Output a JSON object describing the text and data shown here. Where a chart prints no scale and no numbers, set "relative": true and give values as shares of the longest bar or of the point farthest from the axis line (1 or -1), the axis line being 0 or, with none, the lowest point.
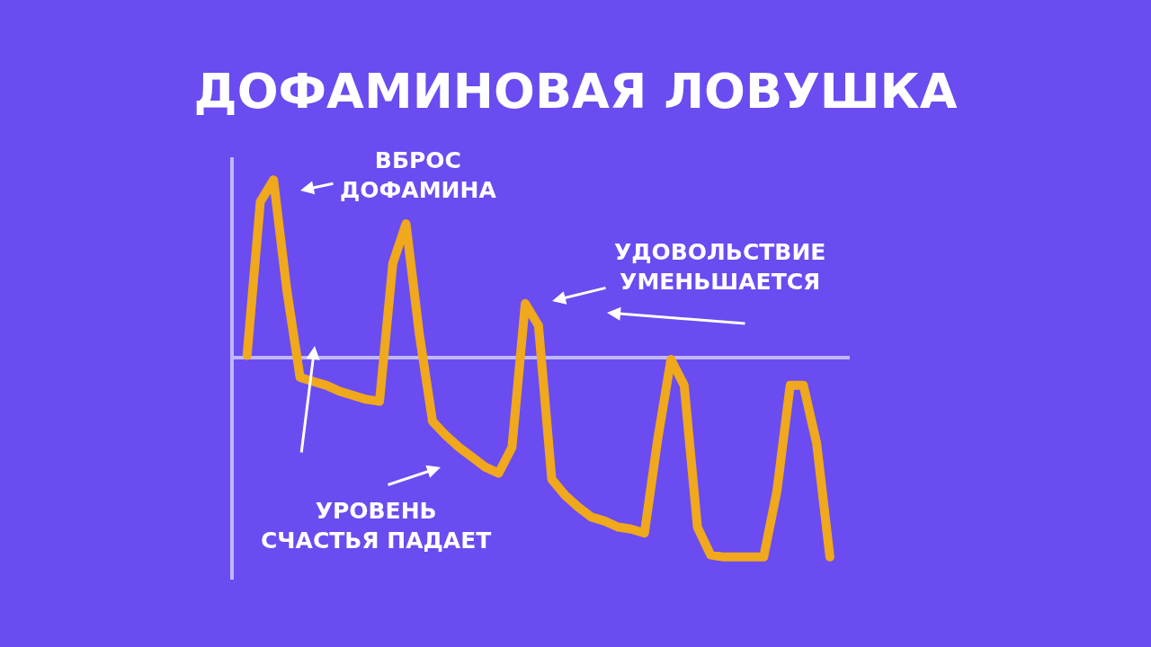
{
  "chart_data": {
    "type": "line",
    "title": "ДОФАМИНОВАЯ ЛОВУШКА",
    "relative": true,
    "color": "#f0a81c",
    "grid": false,
    "line_style": "solid",
    "categories": [
      null,
      null,
      null,
      null,
      null,
      null,
      null,
      null,
      null,
      null,
      null,
      null,
      null,
      null,
      null,
      null,
      null,
      null,
      null,
      null,
      null,
      null,
      null,
      null,
      null,
      null,
      null,
      null,
      null,
      null,
      null,
      null,
      null,
      null,
      null,
      null,
      null,
      null,
      null,
      null,
      null,
      null,
      null,
      null,
      null
    ],
    "values": [
      0.01,
      0.78,
      0.89,
      0.34,
      -0.1,
      -0.12,
      -0.14,
      -0.17,
      -0.19,
      -0.21,
      -0.22,
      0.47,
      0.67,
      0.12,
      -0.32,
      -0.39,
      -0.45,
      -0.5,
      -0.55,
      -0.58,
      -0.45,
      0.27,
      0.16,
      -0.61,
      -0.69,
      -0.75,
      -0.8,
      -0.82,
      -0.85,
      -0.86,
      -0.88,
      -0.41,
      -0.01,
      -0.14,
      -0.85,
      -0.99,
      -1,
      -1,
      -1,
      -1,
      -0.67,
      -0.14,
      -0.14,
      -0.43,
      -1
    ],
    "annotations": [
      "ВБРОС\nДОФАМИНА",
      "УДОВОЛЬСТВИЕ\nУМЕНЬШАЕТСЯ",
      "УРОВЕНЬ\nСЧАСТЬЯ ПАДАЕТ"
    ]
  }
}
